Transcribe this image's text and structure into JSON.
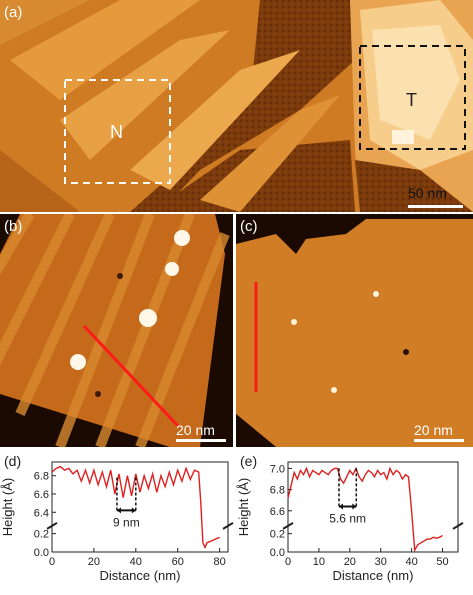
{
  "panels": {
    "a": {
      "label": "(a)",
      "box_labels": [
        "N",
        "T"
      ],
      "scalebar": "50 nm"
    },
    "b": {
      "label": "(b)",
      "scalebar": "20 nm"
    },
    "c": {
      "label": "(c)",
      "scalebar": "20 nm"
    }
  },
  "chart_data": [
    {
      "panel": "(d)",
      "type": "line",
      "xlabel": "Distance (nm)",
      "ylabel": "Height (Å)",
      "xticks": [
        0,
        20,
        40,
        60,
        80
      ],
      "yticks": [
        "0.0",
        "0.2",
        "6.4",
        "6.6",
        "6.8"
      ],
      "xlim": [
        0,
        84
      ],
      "annotation": "9 nm",
      "series": [
        {
          "color": "#e02020",
          "x": [
            0,
            2,
            4,
            6,
            8,
            10,
            12,
            14,
            16,
            18,
            20,
            22,
            24,
            26,
            28,
            30,
            32,
            34,
            36,
            38,
            40,
            42,
            44,
            46,
            48,
            50,
            52,
            54,
            56,
            58,
            60,
            62,
            64,
            66,
            68,
            70,
            71,
            72,
            73,
            74,
            76,
            78,
            80
          ],
          "y": [
            6.84,
            6.88,
            6.9,
            6.86,
            6.88,
            6.82,
            6.86,
            6.74,
            6.86,
            6.72,
            6.86,
            6.7,
            6.84,
            6.68,
            6.86,
            6.6,
            6.82,
            6.56,
            6.8,
            6.58,
            6.82,
            6.62,
            6.8,
            6.66,
            6.82,
            6.62,
            6.8,
            6.68,
            6.84,
            6.7,
            6.86,
            6.74,
            6.88,
            6.76,
            6.86,
            6.84,
            6.5,
            0.1,
            0.05,
            0.1,
            0.12,
            0.14,
            0.16
          ]
        }
      ]
    },
    {
      "panel": "(e)",
      "type": "line",
      "xlabel": "Distance (nm)",
      "ylabel": "Height (Å)",
      "xticks": [
        0,
        10,
        20,
        30,
        40,
        50
      ],
      "yticks": [
        "0.0",
        "0.2",
        "6.6",
        "6.8",
        "7.0"
      ],
      "xlim": [
        0,
        55
      ],
      "annotation": "5.6 nm",
      "series": [
        {
          "color": "#e02020",
          "x": [
            0,
            1,
            2,
            3,
            4,
            5,
            6,
            7,
            8,
            9,
            10,
            11,
            12,
            13,
            14,
            15,
            16,
            17,
            18,
            19,
            20,
            21,
            22,
            23,
            24,
            25,
            26,
            27,
            28,
            29,
            30,
            31,
            32,
            33,
            34,
            35,
            36,
            37,
            38,
            39,
            40,
            41,
            42,
            43,
            44,
            45,
            46,
            47,
            48,
            49,
            50
          ],
          "y": [
            6.72,
            6.84,
            6.96,
            6.9,
            6.98,
            6.94,
            7.0,
            6.92,
            6.98,
            6.96,
            6.94,
            6.98,
            6.96,
            6.94,
            6.98,
            7.0,
            7.0,
            6.9,
            6.86,
            6.92,
            6.98,
            6.94,
            7.0,
            6.92,
            6.88,
            6.94,
            6.98,
            6.96,
            6.92,
            6.98,
            6.94,
            6.96,
            6.9,
            7.0,
            6.94,
            6.98,
            6.96,
            6.9,
            6.94,
            6.92,
            6.6,
            0.02,
            0.08,
            0.1,
            0.12,
            0.14,
            0.14,
            0.16,
            0.15,
            0.16,
            0.18
          ]
        }
      ]
    }
  ]
}
